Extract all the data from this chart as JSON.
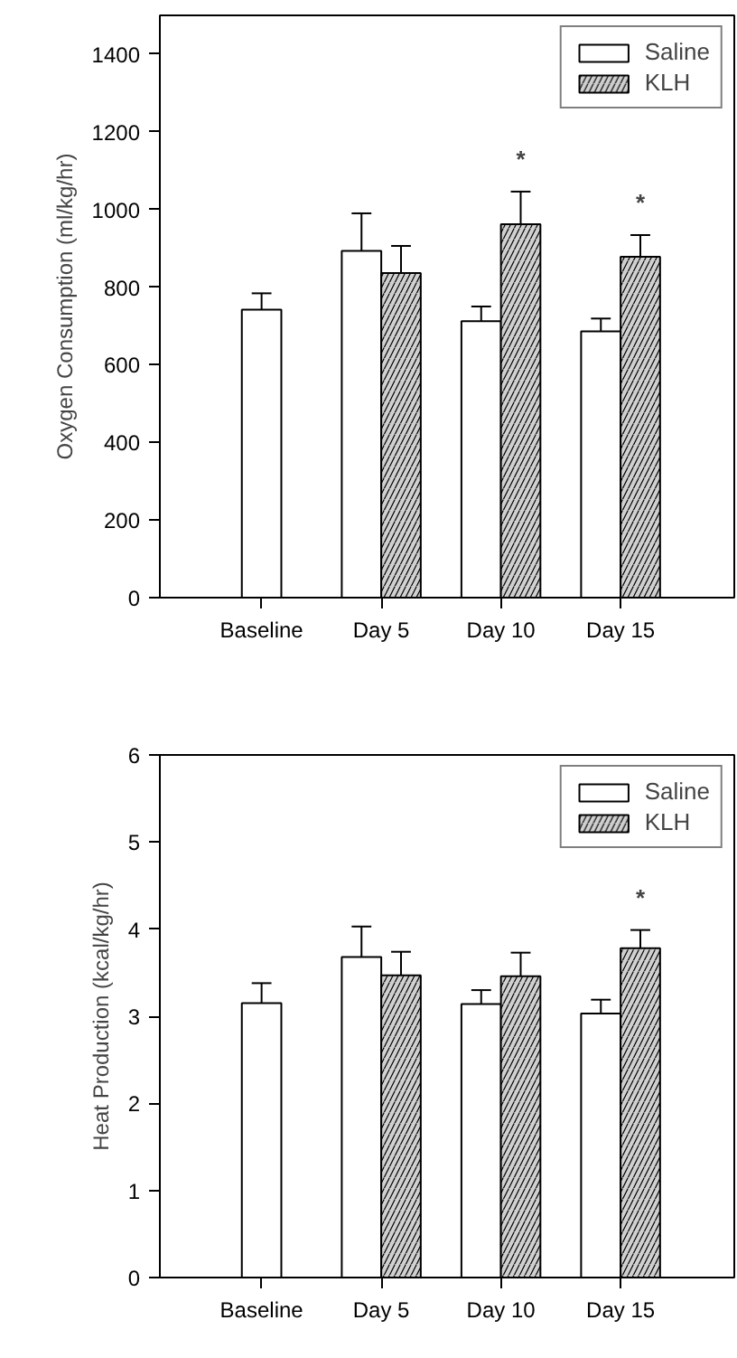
{
  "chart_data": [
    {
      "type": "bar",
      "ylabel": "Oxygen Consumption (ml/kg/hr)",
      "categories": [
        "Baseline",
        "Day 5",
        "Day 10",
        "Day 15"
      ],
      "ylim": [
        0,
        1500
      ],
      "yticks": [
        0,
        200,
        400,
        600,
        800,
        1000,
        1200,
        1400
      ],
      "legend": "top right",
      "grid": false,
      "series": [
        {
          "name": "Saline",
          "color": "#ffffff",
          "values": [
            742,
            893,
            712,
            686
          ],
          "errors": [
            [
              742,
              784
            ],
            [
              893,
              990
            ],
            [
              712,
              750
            ],
            [
              686,
              719
            ]
          ]
        },
        {
          "name": "KLH",
          "color": "#d0d0d0",
          "values": [
            null,
            836,
            962,
            878
          ],
          "errors": [
            null,
            [
              836,
              906
            ],
            [
              962,
              1046
            ],
            [
              878,
              934
            ]
          ],
          "value_labels": [
            null,
            null,
            "*",
            "*"
          ]
        }
      ]
    },
    {
      "type": "bar",
      "ylabel": "Heat Production (kcal/kg/hr)",
      "categories": [
        "Baseline",
        "Day 5",
        "Day 10",
        "Day 15"
      ],
      "ylim": [
        0,
        6
      ],
      "yticks": [
        0,
        1,
        2,
        3,
        4,
        5,
        6
      ],
      "legend": "top right",
      "grid": false,
      "series": [
        {
          "name": "Saline",
          "color": "#ffffff",
          "values": [
            3.15,
            3.68,
            3.14,
            3.03
          ],
          "errors": [
            [
              3.15,
              3.38
            ],
            [
              3.68,
              4.03
            ],
            [
              3.14,
              3.3
            ],
            [
              3.03,
              3.19
            ]
          ]
        },
        {
          "name": "KLH",
          "color": "#d0d0d0",
          "values": [
            null,
            3.47,
            3.46,
            3.78
          ],
          "errors": [
            null,
            [
              3.47,
              3.74
            ],
            [
              3.46,
              3.73
            ],
            [
              3.78,
              3.99
            ]
          ],
          "value_labels": [
            null,
            null,
            null,
            "*"
          ]
        }
      ]
    }
  ]
}
